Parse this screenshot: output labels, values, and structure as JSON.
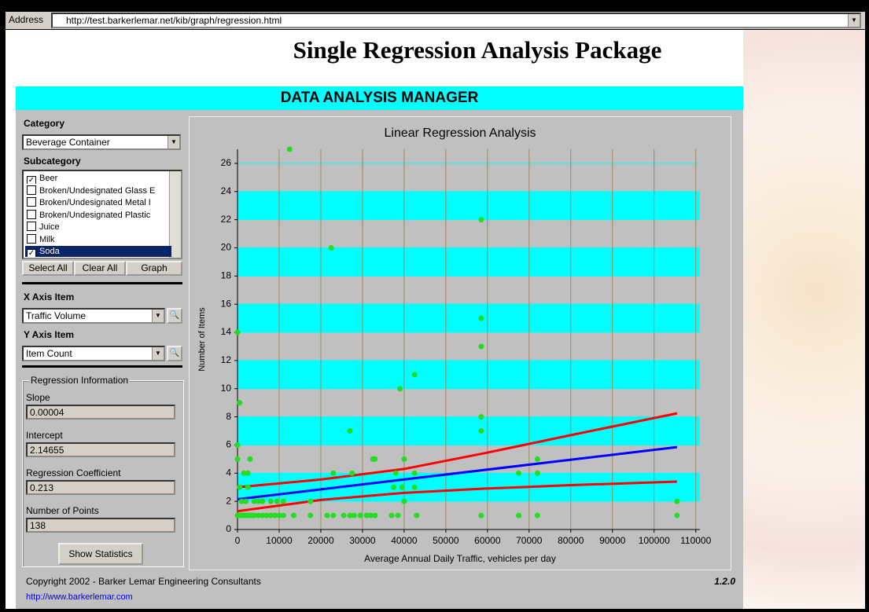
{
  "browser": {
    "address_label": "Address",
    "url": "http://test.barkerlemar.net/kib/graph/regression.html"
  },
  "page_title": "Single Regression Analysis Package",
  "header": "DATA ANALYSIS MANAGER",
  "controls": {
    "category_label": "Category",
    "category_value": "Beverage Container",
    "subcategory_label": "Subcategory",
    "subcategories": [
      {
        "label": "Beer",
        "checked": true,
        "selected": false
      },
      {
        "label": "Broken/Undesignated Glass E",
        "checked": false,
        "selected": false
      },
      {
        "label": "Broken/Undesignated Metal I",
        "checked": false,
        "selected": false
      },
      {
        "label": "Broken/Undesignated Plastic",
        "checked": false,
        "selected": false
      },
      {
        "label": "Juice",
        "checked": false,
        "selected": false
      },
      {
        "label": "Milk",
        "checked": false,
        "selected": false
      },
      {
        "label": "Soda",
        "checked": true,
        "selected": true
      }
    ],
    "buttons": [
      "Select All",
      "Clear All",
      "Graph"
    ],
    "x_axis_label": "X Axis Item",
    "x_axis_value": "Traffic Volume",
    "y_axis_label": "Y Axis Item",
    "y_axis_value": "Item Count"
  },
  "regression": {
    "legend": "Regression Information",
    "fields": [
      {
        "label": "Slope",
        "value": "0.00004"
      },
      {
        "label": "Intercept",
        "value": "2.14655"
      },
      {
        "label": "Regression Coefficient",
        "value": "0.213"
      },
      {
        "label": "Number of Points",
        "value": "138"
      }
    ],
    "button": "Show Statistics"
  },
  "footer": {
    "copyright": "Copyright 2002 - Barker Lemar Engineering Consultants",
    "version": "1.2.0",
    "link": "http://www.barkerlemar.com"
  },
  "chart_data": {
    "type": "scatter",
    "title": "Linear Regression Analysis",
    "x_label": "Average Annual Daily Traffic, vehicles per day",
    "y_label": "Number of Items",
    "xlim": [
      0,
      111000
    ],
    "ylim": [
      0,
      27
    ],
    "xticks": [
      0,
      10000,
      20000,
      30000,
      40000,
      50000,
      60000,
      70000,
      80000,
      90000,
      100000,
      110000
    ],
    "yticks": [
      0,
      2,
      4,
      6,
      8,
      10,
      12,
      14,
      16,
      18,
      20,
      22,
      24,
      26
    ],
    "band_color": "#00ffff",
    "background_color": "#c0c0c0",
    "vgrid_color": "#a08860",
    "series": [
      {
        "style": "markers",
        "color": "#22dd22",
        "x": [
          0,
          500,
          0,
          0,
          0,
          500,
          1000,
          1500,
          2000,
          2500,
          3000,
          3500,
          4000,
          5000,
          6000,
          7000,
          8000,
          9000,
          10000,
          11000,
          13500,
          17500,
          21500,
          23000,
          25500,
          27000,
          28000,
          29500,
          31000,
          32000,
          33000,
          37000,
          38500,
          43000,
          58500,
          67500,
          72000,
          105500,
          105500,
          1000,
          2000,
          4000,
          5000,
          6000,
          8000,
          9500,
          11000,
          17500,
          40000,
          500,
          2500,
          37500,
          39500,
          42500,
          1500,
          2500,
          23000,
          27500,
          38000,
          42500,
          67500,
          72000,
          3000,
          32500,
          33000,
          40000,
          72000,
          27000,
          58500,
          58500,
          39000,
          42500,
          58500,
          58500,
          22500,
          58500,
          12500
        ],
        "values": [
          14,
          9,
          6,
          5,
          1,
          1,
          1,
          1,
          1,
          1,
          1,
          1,
          1,
          1,
          1,
          1,
          1,
          1,
          1,
          1,
          1,
          1,
          1,
          1,
          1,
          1,
          1,
          1,
          1,
          1,
          1,
          1,
          1,
          1,
          1,
          1,
          1,
          1,
          2,
          2,
          2,
          2,
          2,
          2,
          2,
          2,
          2,
          2,
          2,
          3,
          3,
          3,
          3,
          3,
          4,
          4,
          4,
          4,
          4,
          4,
          4,
          4,
          5,
          5,
          5,
          5,
          5,
          7,
          7,
          8,
          10,
          11,
          13,
          15,
          20,
          22,
          27
        ]
      },
      {
        "style": "line",
        "color": "#ff0000",
        "x": [
          0,
          20000,
          40000,
          59000,
          80000,
          105500
        ],
        "values": [
          3.0,
          3.55,
          4.3,
          5.4,
          6.7,
          8.25
        ]
      },
      {
        "style": "line",
        "color": "#0000ff",
        "x": [
          0,
          105500
        ],
        "values": [
          2.15,
          5.85
        ]
      },
      {
        "style": "line",
        "color": "#ff0000",
        "x": [
          0,
          20000,
          40000,
          59000,
          80000,
          105500
        ],
        "values": [
          1.3,
          2.1,
          2.6,
          2.9,
          3.15,
          3.4
        ]
      }
    ]
  }
}
